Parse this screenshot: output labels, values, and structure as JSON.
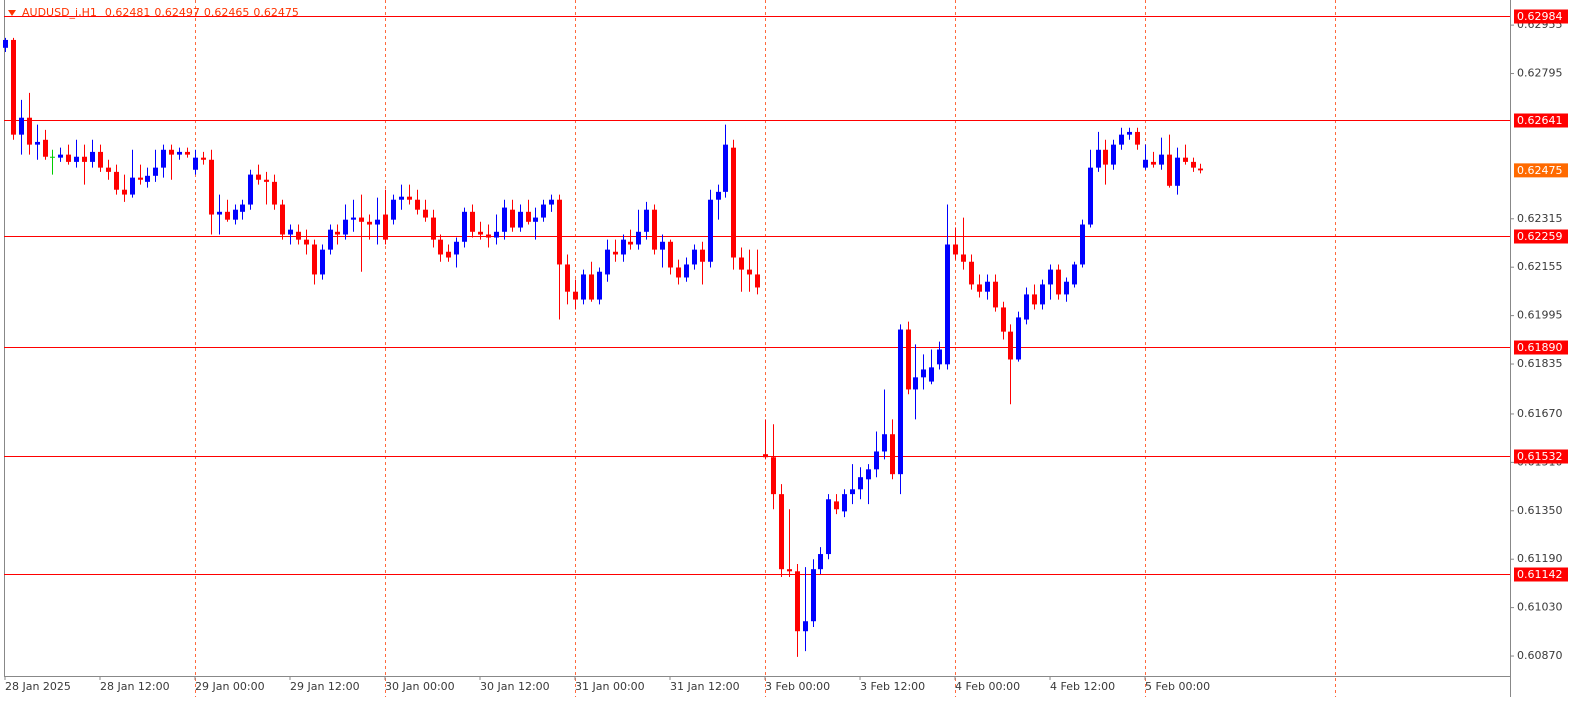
{
  "chart_data": {
    "type": "candlestick",
    "symbol": "AUDUSD_i,H1",
    "header_values": [
      0.62481,
      0.62497,
      0.62465,
      0.62475
    ],
    "open": [
      0.6288,
      0.62906,
      0.62593,
      0.62649,
      0.6256,
      0.62576,
      0.6252,
      0.62517,
      0.62527,
      0.62503,
      0.6252,
      0.62503,
      0.62536,
      0.62484,
      0.6247,
      0.62411,
      0.62395,
      0.62451,
      0.62437,
      0.62457,
      0.62484,
      0.62543,
      0.62527,
      0.62536,
      0.62477,
      0.62517,
      0.6251,
      0.62329,
      0.62338,
      0.62312,
      0.62338,
      0.62362,
      0.62461,
      0.62444,
      0.62437,
      0.62362,
      0.62263,
      0.62272,
      0.62246,
      0.6223,
      0.62131,
      0.62213,
      0.62272,
      0.62263,
      0.62312,
      0.62319,
      0.62305,
      0.62296,
      0.62329,
      0.62312,
      0.62378,
      0.62388,
      0.62378,
      0.62345,
      0.62319,
      0.62246,
      0.62206,
      0.62197,
      0.62239,
      0.62338,
      0.62272,
      0.62263,
      0.62253,
      0.62272,
      0.62345,
      0.62286,
      0.62338,
      0.62305,
      0.62319,
      0.62362,
      0.62378,
      0.62164,
      0.62074,
      0.62048,
      0.62131,
      0.62048,
      0.62131,
      0.62206,
      0.62197,
      0.62239,
      0.6223,
      0.62272,
      0.62345,
      0.62213,
      0.62239,
      0.62154,
      0.62121,
      0.62164,
      0.62213,
      0.62173,
      0.62378,
      0.62404,
      0.6255,
      0.62187,
      0.62147,
      0.62131,
      0.61537,
      0.61527,
      0.61405,
      0.61157,
      0.6115,
      0.60952,
      0.60985,
      0.61157,
      0.61207,
      0.61381,
      0.61348,
      0.61405,
      0.61421,
      0.61454,
      0.61487,
      0.61546,
      0.61603,
      0.61471,
      0.61949,
      0.61751,
      0.61791,
      0.61777,
      0.61834,
      0.61834,
      0.6223,
      0.62197,
      0.62173,
      0.62098,
      0.62074,
      0.62107,
      0.62022,
      0.61942,
      0.6185,
      0.61982,
      0.62065,
      0.62032,
      0.62098,
      0.62147,
      0.62065,
      0.62098,
      0.62164,
      0.62296,
      0.62484,
      0.62543,
      0.62494,
      0.6256,
      0.62593,
      0.62602,
      0.62484,
      0.62503,
      0.62494,
      0.62527,
      0.62424,
      0.62517,
      0.62503,
      0.62481
    ],
    "high": [
      0.62913,
      0.62913,
      0.62708,
      0.62731,
      0.62626,
      0.62609,
      0.62543,
      0.6255,
      0.6256,
      0.62576,
      0.6256,
      0.62576,
      0.6256,
      0.6251,
      0.62494,
      0.62461,
      0.62543,
      0.62494,
      0.62484,
      0.62543,
      0.6256,
      0.6256,
      0.6255,
      0.6255,
      0.62543,
      0.62536,
      0.62543,
      0.62395,
      0.62378,
      0.62362,
      0.62378,
      0.62477,
      0.62494,
      0.6247,
      0.62461,
      0.62378,
      0.62296,
      0.62296,
      0.62279,
      0.62246,
      0.6223,
      0.62296,
      0.62296,
      0.62362,
      0.62378,
      0.62395,
      0.62329,
      0.62385,
      0.62411,
      0.62395,
      0.62428,
      0.62428,
      0.62411,
      0.62378,
      0.62345,
      0.62263,
      0.6223,
      0.62253,
      0.62352,
      0.62362,
      0.62305,
      0.62296,
      0.62329,
      0.62378,
      0.62378,
      0.62362,
      0.62378,
      0.62352,
      0.62378,
      0.62395,
      0.62395,
      0.62197,
      0.62114,
      0.62147,
      0.62173,
      0.62154,
      0.62246,
      0.62246,
      0.62263,
      0.62279,
      0.62345,
      0.62371,
      0.62362,
      0.62263,
      0.62246,
      0.6218,
      0.62187,
      0.6223,
      0.62239,
      0.62411,
      0.62428,
      0.62626,
      0.62576,
      0.6222,
      0.62213,
      0.62213,
      0.61652,
      0.61636,
      0.61438,
      0.61355,
      0.61174,
      0.61164,
      0.6119,
      0.6123,
      0.61405,
      0.61405,
      0.61421,
      0.61504,
      0.61494,
      0.61504,
      0.61612,
      0.61751,
      0.61652,
      0.61966,
      0.61975,
      0.619,
      0.61867,
      0.61883,
      0.61909,
      0.62362,
      0.62286,
      0.62319,
      0.62197,
      0.62131,
      0.62131,
      0.62131,
      0.62041,
      0.61966,
      0.62008,
      0.62088,
      0.62098,
      0.62114,
      0.62164,
      0.62164,
      0.62121,
      0.62173,
      0.62312,
      0.62543,
      0.62602,
      0.62576,
      0.62576,
      0.62616,
      0.62616,
      0.62616,
      0.6256,
      0.62536,
      0.62583,
      0.62593,
      0.6255,
      0.6256,
      0.62517,
      0.62497
    ],
    "low": [
      0.62866,
      0.62576,
      0.62527,
      0.62527,
      0.6251,
      0.6251,
      0.62461,
      0.62503,
      0.62494,
      0.62484,
      0.62428,
      0.62484,
      0.6247,
      0.62444,
      0.62395,
      0.62371,
      0.62385,
      0.62428,
      0.62418,
      0.62437,
      0.62451,
      0.62444,
      0.6251,
      0.62517,
      0.62461,
      0.62494,
      0.62263,
      0.62263,
      0.62305,
      0.62296,
      0.62312,
      0.62345,
      0.62428,
      0.62362,
      0.62345,
      0.62246,
      0.6223,
      0.6223,
      0.62197,
      0.62098,
      0.62114,
      0.62197,
      0.6223,
      0.62246,
      0.62272,
      0.6214,
      0.62246,
      0.6223,
      0.6223,
      0.62296,
      0.62345,
      0.62362,
      0.62329,
      0.62305,
      0.6222,
      0.62173,
      0.62173,
      0.62154,
      0.6222,
      0.62253,
      0.62246,
      0.6222,
      0.6223,
      0.62246,
      0.62272,
      0.62272,
      0.62296,
      0.62246,
      0.62305,
      0.62338,
      0.61982,
      0.62032,
      0.62015,
      0.62032,
      0.62041,
      0.62032,
      0.62107,
      0.62173,
      0.62173,
      0.62213,
      0.62213,
      0.62246,
      0.62197,
      0.62154,
      0.62131,
      0.62098,
      0.62107,
      0.62147,
      0.62098,
      0.62154,
      0.62312,
      0.62385,
      0.62147,
      0.62074,
      0.62074,
      0.62065,
      0.6152,
      0.61355,
      0.61131,
      0.61131,
      0.60867,
      0.60886,
      0.60966,
      0.61141,
      0.6119,
      0.61339,
      0.61329,
      0.61372,
      0.61388,
      0.61372,
      0.61461,
      0.6152,
      0.61454,
      0.61405,
      0.61735,
      0.61652,
      0.61751,
      0.61768,
      0.61817,
      0.61817,
      0.6218,
      0.62147,
      0.62081,
      0.62055,
      0.62048,
      0.62008,
      0.61916,
      0.61702,
      0.61843,
      0.61966,
      0.62015,
      0.62015,
      0.62048,
      0.62048,
      0.62041,
      0.62088,
      0.62154,
      0.62286,
      0.6247,
      0.62428,
      0.62477,
      0.62543,
      0.62576,
      0.62543,
      0.62477,
      0.62484,
      0.62477,
      0.62418,
      0.62395,
      0.62494,
      0.6247,
      0.62465
    ],
    "close": [
      0.62906,
      0.62593,
      0.62649,
      0.6256,
      0.62569,
      0.6252,
      0.6252,
      0.62527,
      0.62503,
      0.6252,
      0.62503,
      0.62536,
      0.62484,
      0.6247,
      0.62411,
      0.62395,
      0.62451,
      0.62444,
      0.62457,
      0.62484,
      0.62543,
      0.62527,
      0.62536,
      0.62527,
      0.62517,
      0.6251,
      0.62329,
      0.62338,
      0.62312,
      0.62345,
      0.62362,
      0.62461,
      0.62444,
      0.62437,
      0.62362,
      0.62263,
      0.62279,
      0.62246,
      0.6223,
      0.62131,
      0.62213,
      0.62279,
      0.62263,
      0.62312,
      0.62319,
      0.62305,
      0.62296,
      0.62312,
      0.62246,
      0.62378,
      0.62388,
      0.62378,
      0.62345,
      0.62319,
      0.62246,
      0.62197,
      0.62187,
      0.62239,
      0.62338,
      0.62272,
      0.62263,
      0.62253,
      0.62272,
      0.62352,
      0.62286,
      0.62338,
      0.62305,
      0.62319,
      0.62362,
      0.62378,
      0.62164,
      0.62074,
      0.62048,
      0.62131,
      0.62048,
      0.6214,
      0.62213,
      0.62197,
      0.62246,
      0.6223,
      0.62272,
      0.62345,
      0.62213,
      0.62239,
      0.62154,
      0.62121,
      0.62164,
      0.62213,
      0.62173,
      0.62378,
      0.62404,
      0.6256,
      0.62187,
      0.62147,
      0.62131,
      0.62088,
      0.61527,
      0.61405,
      0.61157,
      0.6115,
      0.60952,
      0.60985,
      0.61157,
      0.61207,
      0.61388,
      0.61355,
      0.61405,
      0.61421,
      0.61461,
      0.61487,
      0.61546,
      0.61603,
      0.61471,
      0.61949,
      0.61751,
      0.61791,
      0.61817,
      0.61824,
      0.61883,
      0.6223,
      0.62197,
      0.62173,
      0.62098,
      0.62074,
      0.62107,
      0.62022,
      0.61942,
      0.6185,
      0.61989,
      0.62065,
      0.62032,
      0.62098,
      0.62147,
      0.62065,
      0.62107,
      0.62164,
      0.62296,
      0.62484,
      0.62543,
      0.62494,
      0.6256,
      0.62593,
      0.62602,
      0.6256,
      0.6251,
      0.62494,
      0.62527,
      0.62424,
      0.62517,
      0.62503,
      0.62484,
      0.62475
    ],
    "up_color": "#0000ff",
    "down_color": "#ff0000",
    "doji_color": "#00cc00",
    "xlim": [
      -0.63,
      190.1
    ],
    "xticks": [
      {
        "value": 0,
        "label": "28 Jan 2025"
      },
      {
        "value": 12,
        "label": "28 Jan 12:00"
      },
      {
        "value": 24,
        "label": "29 Jan 00:00"
      },
      {
        "value": 36,
        "label": "29 Jan 12:00"
      },
      {
        "value": 48,
        "label": "30 Jan 00:00"
      },
      {
        "value": 60,
        "label": "30 Jan 12:00"
      },
      {
        "value": 72,
        "label": "31 Jan 00:00"
      },
      {
        "value": 84,
        "label": "31 Jan 12:00"
      },
      {
        "value": 96,
        "label": "3 Feb 00:00"
      },
      {
        "value": 108,
        "label": "3 Feb 12:00"
      },
      {
        "value": 120,
        "label": "4 Feb 00:00"
      },
      {
        "value": 132,
        "label": "4 Feb 12:00"
      },
      {
        "value": 144,
        "label": "5 Feb 00:00"
      }
    ],
    "xgrid": [
      24,
      48,
      72,
      96,
      120,
      144,
      168
    ],
    "grid_color": "#ff6a3d",
    "ylim": [
      0.60804,
      0.63038
    ],
    "yticks": [
      0.62955,
      0.62795,
      0.62315,
      0.62155,
      0.61995,
      0.61835,
      {
        "value": 0.6167,
        "label": "0.61670"
      },
      {
        "value": 0.6151,
        "label": "0.61510"
      },
      {
        "value": 0.6135,
        "label": "0.61350"
      },
      {
        "value": 0.6119,
        "label": "0.61190"
      },
      {
        "value": 0.6103,
        "label": "0.61030"
      },
      {
        "value": 0.6087,
        "label": "0.60870"
      }
    ],
    "levels": [
      0.62984,
      0.62641,
      0.62259,
      {
        "value": 0.6189,
        "label": "0.61890"
      },
      0.61532,
      0.61142
    ],
    "level_color": "#ff0000",
    "last_price": 0.62475,
    "last_price_color": "#ff6a00"
  }
}
